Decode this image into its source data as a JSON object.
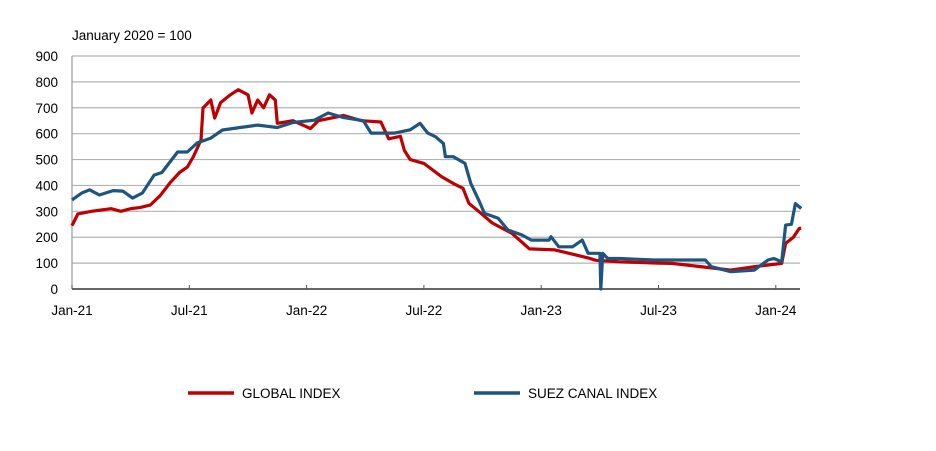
{
  "chart_data": {
    "type": "line",
    "title": "",
    "ylabel": "January 2020 = 100",
    "xlabel": "",
    "x_unit": "months since Jan-21",
    "xlim": [
      0,
      37.3
    ],
    "ylim": [
      0,
      900
    ],
    "yticks": [
      0,
      100,
      200,
      300,
      400,
      500,
      600,
      700,
      800,
      900
    ],
    "xticks": [
      {
        "value": 0,
        "label": "Jan-21"
      },
      {
        "value": 6,
        "label": "Jul-21"
      },
      {
        "value": 12,
        "label": "Jan-22"
      },
      {
        "value": 18,
        "label": "Jul-22"
      },
      {
        "value": 24,
        "label": "Jan-23"
      },
      {
        "value": 30,
        "label": "Jul-23"
      },
      {
        "value": 36,
        "label": "Jan-24"
      }
    ],
    "grid": true,
    "legend_position": "bottom",
    "series": [
      {
        "name": "GLOBAL INDEX",
        "color": "#c00000",
        "points": [
          [
            0,
            245
          ],
          [
            0.3,
            290
          ],
          [
            1,
            300
          ],
          [
            1.5,
            305
          ],
          [
            2,
            310
          ],
          [
            2.5,
            300
          ],
          [
            3,
            310
          ],
          [
            3.5,
            315
          ],
          [
            4,
            324
          ],
          [
            4.5,
            360
          ],
          [
            5,
            409
          ],
          [
            5.5,
            450
          ],
          [
            5.9,
            471
          ],
          [
            6.2,
            510
          ],
          [
            6.6,
            575
          ],
          [
            6.7,
            699
          ],
          [
            7.1,
            730
          ],
          [
            7.3,
            660
          ],
          [
            7.6,
            720
          ],
          [
            8.1,
            750
          ],
          [
            8.5,
            770
          ],
          [
            9,
            750
          ],
          [
            9.2,
            680
          ],
          [
            9.5,
            730
          ],
          [
            9.8,
            700
          ],
          [
            10.1,
            750
          ],
          [
            10.4,
            730
          ],
          [
            10.5,
            640
          ],
          [
            11.3,
            650
          ],
          [
            12.2,
            620
          ],
          [
            12.6,
            650
          ],
          [
            13.9,
            670
          ],
          [
            14.8,
            650
          ],
          [
            15.8,
            645
          ],
          [
            16.2,
            580
          ],
          [
            16.8,
            590
          ],
          [
            17,
            535
          ],
          [
            17.3,
            500
          ],
          [
            18,
            485
          ],
          [
            18.9,
            434
          ],
          [
            19.5,
            408
          ],
          [
            20,
            389
          ],
          [
            20.3,
            331
          ],
          [
            20.8,
            300
          ],
          [
            21.5,
            255
          ],
          [
            22.5,
            215
          ],
          [
            23.4,
            155
          ],
          [
            24.7,
            151
          ],
          [
            26.4,
            120
          ],
          [
            26.8,
            111
          ],
          [
            28,
            105
          ],
          [
            30,
            100
          ],
          [
            30.7,
            99
          ],
          [
            33.7,
            73
          ],
          [
            34.9,
            86
          ],
          [
            36.3,
            99
          ],
          [
            36.5,
            176
          ],
          [
            36.9,
            200
          ],
          [
            37.2,
            234
          ],
          [
            37.3,
            234
          ]
        ]
      },
      {
        "name": "SUEZ CANAL INDEX",
        "color": "#1d5580",
        "points": [
          [
            0,
            344
          ],
          [
            0.5,
            371
          ],
          [
            0.9,
            383
          ],
          [
            1.4,
            363
          ],
          [
            2.1,
            380
          ],
          [
            2.6,
            378
          ],
          [
            3.1,
            351
          ],
          [
            3.6,
            371
          ],
          [
            4.2,
            440
          ],
          [
            4.6,
            450
          ],
          [
            5.4,
            529
          ],
          [
            5.9,
            529
          ],
          [
            6.4,
            564
          ],
          [
            7.1,
            583
          ],
          [
            7.7,
            614
          ],
          [
            8.6,
            624
          ],
          [
            9.5,
            633
          ],
          [
            10.5,
            624
          ],
          [
            11.3,
            643
          ],
          [
            12.4,
            652
          ],
          [
            13.1,
            680
          ],
          [
            13.9,
            662
          ],
          [
            14.9,
            650
          ],
          [
            15.3,
            602
          ],
          [
            16.5,
            602
          ],
          [
            17.3,
            615
          ],
          [
            17.8,
            640
          ],
          [
            18.2,
            602
          ],
          [
            18.6,
            588
          ],
          [
            19,
            562
          ],
          [
            19.1,
            511
          ],
          [
            19.5,
            511
          ],
          [
            20.1,
            485
          ],
          [
            20.4,
            408
          ],
          [
            20.8,
            344
          ],
          [
            21.1,
            292
          ],
          [
            21.8,
            273
          ],
          [
            22.3,
            228
          ],
          [
            23,
            209
          ],
          [
            23.5,
            189
          ],
          [
            24.4,
            189
          ],
          [
            24.5,
            202
          ],
          [
            24.9,
            163
          ],
          [
            25.6,
            163
          ],
          [
            26.1,
            189
          ],
          [
            26.4,
            138
          ],
          [
            27,
            138
          ],
          [
            27.05,
            0
          ],
          [
            27.15,
            138
          ],
          [
            27.4,
            118
          ],
          [
            28,
            118
          ],
          [
            29.8,
            112
          ],
          [
            31.3,
            112
          ],
          [
            32.4,
            112
          ],
          [
            32.7,
            86
          ],
          [
            33.7,
            67
          ],
          [
            34.9,
            73
          ],
          [
            35.6,
            112
          ],
          [
            35.9,
            118
          ],
          [
            36.3,
            105
          ],
          [
            36.5,
            247
          ],
          [
            36.8,
            250
          ],
          [
            37,
            330
          ],
          [
            37.3,
            311
          ]
        ]
      }
    ]
  }
}
